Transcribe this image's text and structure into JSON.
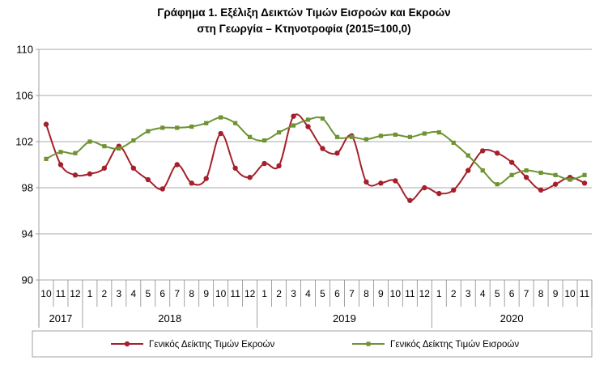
{
  "chart_data": {
    "type": "line",
    "title": [
      "Γράφημα 1. Εξέλιξη Δεικτών Τιμών Εισροών και Εκροών",
      "στη Γεωργία – Κτηνοτροφία (2015=100,0)"
    ],
    "xlabel": "",
    "ylabel": "",
    "ylim": [
      90,
      110
    ],
    "yticks": [
      "90",
      "94",
      "98",
      "102",
      "106",
      "110"
    ],
    "grid": "horizontal",
    "legend_position": "bottom",
    "x_months": [
      "10",
      "11",
      "12",
      "1",
      "2",
      "3",
      "4",
      "5",
      "6",
      "7",
      "8",
      "9",
      "10",
      "11",
      "12",
      "1",
      "2",
      "3",
      "4",
      "5",
      "6",
      "7",
      "8",
      "9",
      "10",
      "11",
      "12",
      "1",
      "2",
      "3",
      "4",
      "5",
      "6",
      "7",
      "8",
      "9",
      "10",
      "11"
    ],
    "x_years": [
      {
        "label": "2017",
        "start": 0,
        "count": 3
      },
      {
        "label": "2018",
        "start": 3,
        "count": 12
      },
      {
        "label": "2019",
        "start": 15,
        "count": 12
      },
      {
        "label": "2020",
        "start": 27,
        "count": 11
      }
    ],
    "series": [
      {
        "name": "Γενικός Δείκτης Τιμών Εκροών",
        "color": "#a5202a",
        "marker": "circle",
        "values": [
          103.5,
          100.0,
          99.1,
          99.2,
          99.7,
          101.6,
          99.7,
          98.7,
          97.9,
          100.0,
          98.4,
          98.8,
          102.7,
          99.7,
          98.9,
          100.1,
          99.9,
          104.2,
          103.3,
          101.4,
          101.0,
          102.5,
          98.5,
          98.4,
          98.6,
          96.9,
          98.0,
          97.5,
          97.8,
          99.5,
          101.2,
          101.0,
          100.2,
          98.9,
          97.8,
          98.3,
          98.9,
          98.4
        ]
      },
      {
        "name": "Γενικός Δείκτης Τιμών Εισροών",
        "color": "#6e9332",
        "marker": "square",
        "values": [
          100.5,
          101.1,
          101.0,
          102.0,
          101.6,
          101.4,
          102.1,
          102.9,
          103.2,
          103.2,
          103.3,
          103.6,
          104.1,
          103.6,
          102.4,
          102.1,
          102.8,
          103.4,
          103.9,
          104.0,
          102.4,
          102.4,
          102.2,
          102.5,
          102.6,
          102.4,
          102.7,
          102.8,
          101.9,
          100.8,
          99.5,
          98.3,
          99.1,
          99.5,
          99.3,
          99.1,
          98.7,
          99.1
        ]
      }
    ]
  }
}
